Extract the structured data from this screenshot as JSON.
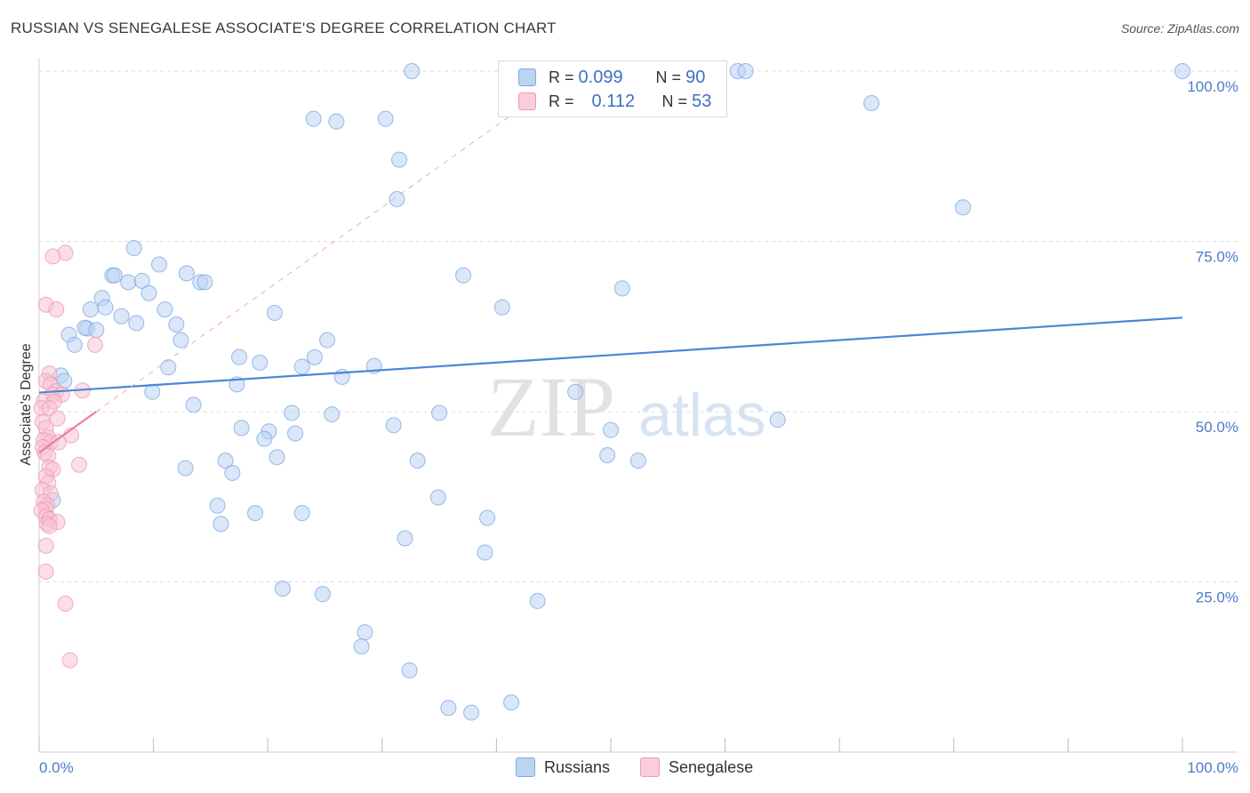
{
  "header": {
    "title": "RUSSIAN VS SENEGALESE ASSOCIATE'S DEGREE CORRELATION CHART",
    "source": "Source: ZipAtlas.com"
  },
  "watermark": "ZIPatlas",
  "legend": {
    "rows": [
      {
        "r_label": "R =",
        "r_value": "0.099",
        "n_label": "N =",
        "n_value": "90",
        "color": "#a9c8f0"
      },
      {
        "r_label": "R =",
        "r_value": "0.112",
        "n_label": "N =",
        "n_value": "53",
        "color": "#f6b8cb"
      }
    ],
    "series_names": [
      "Russians",
      "Senegalese"
    ]
  },
  "chart_data": {
    "type": "scatter",
    "title": "RUSSIAN VS SENEGALESE ASSOCIATE'S DEGREE CORRELATION CHART",
    "xlabel": "",
    "ylabel": "Associate's Degree",
    "xlim": [
      0,
      100
    ],
    "ylim": [
      0,
      100
    ],
    "y_tick_labels": [
      "100.0%",
      "75.0%",
      "50.0%",
      "25.0%"
    ],
    "y_tick_values": [
      100,
      75,
      50,
      25
    ],
    "x_tick_labels": [
      "0.0%",
      "100.0%"
    ],
    "colors": {
      "russians": "#4a86d8",
      "senegalese": "#ec7ba0",
      "russians_fill": "#bcd4f2",
      "senegalese_fill": "#f7c2d3"
    },
    "series": [
      {
        "name": "Russians",
        "trend": {
          "x": [
            0,
            100
          ],
          "y": [
            52.8,
            63.8
          ]
        },
        "points": [
          [
            32.6,
            100
          ],
          [
            61.1,
            100
          ],
          [
            61.8,
            100
          ],
          [
            100,
            100
          ],
          [
            24.0,
            93.0
          ],
          [
            26.0,
            92.6
          ],
          [
            30.3,
            93.0
          ],
          [
            72.8,
            95.3
          ],
          [
            31.5,
            87.0
          ],
          [
            31.3,
            81.2
          ],
          [
            80.8,
            80.0
          ],
          [
            8.3,
            74.0
          ],
          [
            10.5,
            71.6
          ],
          [
            6.4,
            70.0
          ],
          [
            6.6,
            70.0
          ],
          [
            12.9,
            70.3
          ],
          [
            7.8,
            69.0
          ],
          [
            9.0,
            69.2
          ],
          [
            14.1,
            69.0
          ],
          [
            14.5,
            69.0
          ],
          [
            37.1,
            70.0
          ],
          [
            51.0,
            68.1
          ],
          [
            5.5,
            66.7
          ],
          [
            9.6,
            67.4
          ],
          [
            5.8,
            65.3
          ],
          [
            4.5,
            65.0
          ],
          [
            11.0,
            65.0
          ],
          [
            20.6,
            64.5
          ],
          [
            40.5,
            65.3
          ],
          [
            7.2,
            64.0
          ],
          [
            8.5,
            63.0
          ],
          [
            12.0,
            62.8
          ],
          [
            4.2,
            62.2
          ],
          [
            4.0,
            62.3
          ],
          [
            5.0,
            62.0
          ],
          [
            2.6,
            61.3
          ],
          [
            3.1,
            59.8
          ],
          [
            12.4,
            60.5
          ],
          [
            25.2,
            60.5
          ],
          [
            17.5,
            58.0
          ],
          [
            24.1,
            58.0
          ],
          [
            19.3,
            57.2
          ],
          [
            11.3,
            56.5
          ],
          [
            23.0,
            56.6
          ],
          [
            29.3,
            56.7
          ],
          [
            26.5,
            55.1
          ],
          [
            1.9,
            55.3
          ],
          [
            2.2,
            54.5
          ],
          [
            17.3,
            54.0
          ],
          [
            9.9,
            52.9
          ],
          [
            46.9,
            52.9
          ],
          [
            13.5,
            51.0
          ],
          [
            22.1,
            49.8
          ],
          [
            25.6,
            49.6
          ],
          [
            35.0,
            49.8
          ],
          [
            64.6,
            48.8
          ],
          [
            31.0,
            48.0
          ],
          [
            17.7,
            47.6
          ],
          [
            20.1,
            47.1
          ],
          [
            22.4,
            46.8
          ],
          [
            50.0,
            47.3
          ],
          [
            19.7,
            46.0
          ],
          [
            49.7,
            43.6
          ],
          [
            20.8,
            43.3
          ],
          [
            33.1,
            42.8
          ],
          [
            52.4,
            42.8
          ],
          [
            16.3,
            42.8
          ],
          [
            12.8,
            41.7
          ],
          [
            16.9,
            41.0
          ],
          [
            34.9,
            37.4
          ],
          [
            15.6,
            36.2
          ],
          [
            1.2,
            37.0
          ],
          [
            18.9,
            35.1
          ],
          [
            23.0,
            35.1
          ],
          [
            39.2,
            34.4
          ],
          [
            15.9,
            33.5
          ],
          [
            32.0,
            31.4
          ],
          [
            39.0,
            29.3
          ],
          [
            21.3,
            24.0
          ],
          [
            24.8,
            23.2
          ],
          [
            43.6,
            22.2
          ],
          [
            28.5,
            17.6
          ],
          [
            28.2,
            15.5
          ],
          [
            32.4,
            12.0
          ],
          [
            41.3,
            7.3
          ],
          [
            35.8,
            6.5
          ],
          [
            37.8,
            5.8
          ]
        ]
      },
      {
        "name": "Senegalese",
        "trend": {
          "x": [
            0,
            5.0
          ],
          "y": [
            44.0,
            50.0
          ]
        },
        "points": [
          [
            2.3,
            73.3
          ],
          [
            1.2,
            72.8
          ],
          [
            0.6,
            65.7
          ],
          [
            1.5,
            65.0
          ],
          [
            4.9,
            59.8
          ],
          [
            0.9,
            55.6
          ],
          [
            0.6,
            54.5
          ],
          [
            1.0,
            54.0
          ],
          [
            1.5,
            53.0
          ],
          [
            3.8,
            53.1
          ],
          [
            1.2,
            52.5
          ],
          [
            2.0,
            52.5
          ],
          [
            0.4,
            51.5
          ],
          [
            1.3,
            51.5
          ],
          [
            0.2,
            50.5
          ],
          [
            0.9,
            50.5
          ],
          [
            1.6,
            49.0
          ],
          [
            0.3,
            48.5
          ],
          [
            0.6,
            47.6
          ],
          [
            2.8,
            46.5
          ],
          [
            0.8,
            46.2
          ],
          [
            0.4,
            45.8
          ],
          [
            1.0,
            45.5
          ],
          [
            1.7,
            45.5
          ],
          [
            0.3,
            44.8
          ],
          [
            0.5,
            44.0
          ],
          [
            0.8,
            43.5
          ],
          [
            3.5,
            42.2
          ],
          [
            0.9,
            41.8
          ],
          [
            1.2,
            41.5
          ],
          [
            0.6,
            40.5
          ],
          [
            0.8,
            39.5
          ],
          [
            0.3,
            38.5
          ],
          [
            1.0,
            38.0
          ],
          [
            0.4,
            36.8
          ],
          [
            0.7,
            36.2
          ],
          [
            0.6,
            35.7
          ],
          [
            0.2,
            35.5
          ],
          [
            0.6,
            34.6
          ],
          [
            0.9,
            34.2
          ],
          [
            1.6,
            33.8
          ],
          [
            0.7,
            33.5
          ],
          [
            0.9,
            33.2
          ],
          [
            0.6,
            30.3
          ],
          [
            0.6,
            26.5
          ],
          [
            2.3,
            21.8
          ],
          [
            2.7,
            13.5
          ]
        ]
      }
    ]
  }
}
